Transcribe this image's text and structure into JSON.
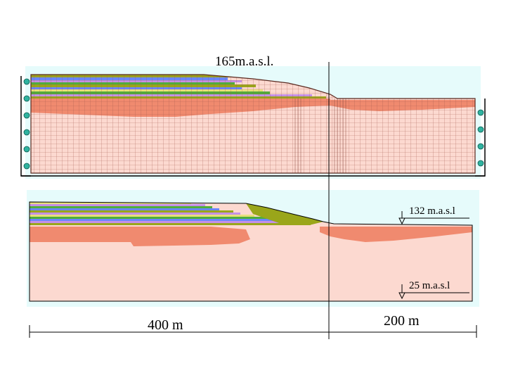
{
  "labels": {
    "top_elevation": "165m.a.s.l.",
    "mid_elevation": "132 m.a.s.l",
    "low_elevation": "25 m.a.s.l",
    "distance_left": "400 m",
    "distance_right": "200 m"
  },
  "colors": {
    "background_panel": "#e6fbfb",
    "mesh_line": "#a05040",
    "soil_light": "#fcd9d0",
    "soil_dark": "#f08a6f",
    "node_fill": "#2fb3a0",
    "layer_olive": "#9aa61a",
    "layer_blue": "#6a86ff",
    "layer_purple": "#c590e6",
    "layer_green": "#4fae3a",
    "layer_yellow": "#e6e07a"
  }
}
